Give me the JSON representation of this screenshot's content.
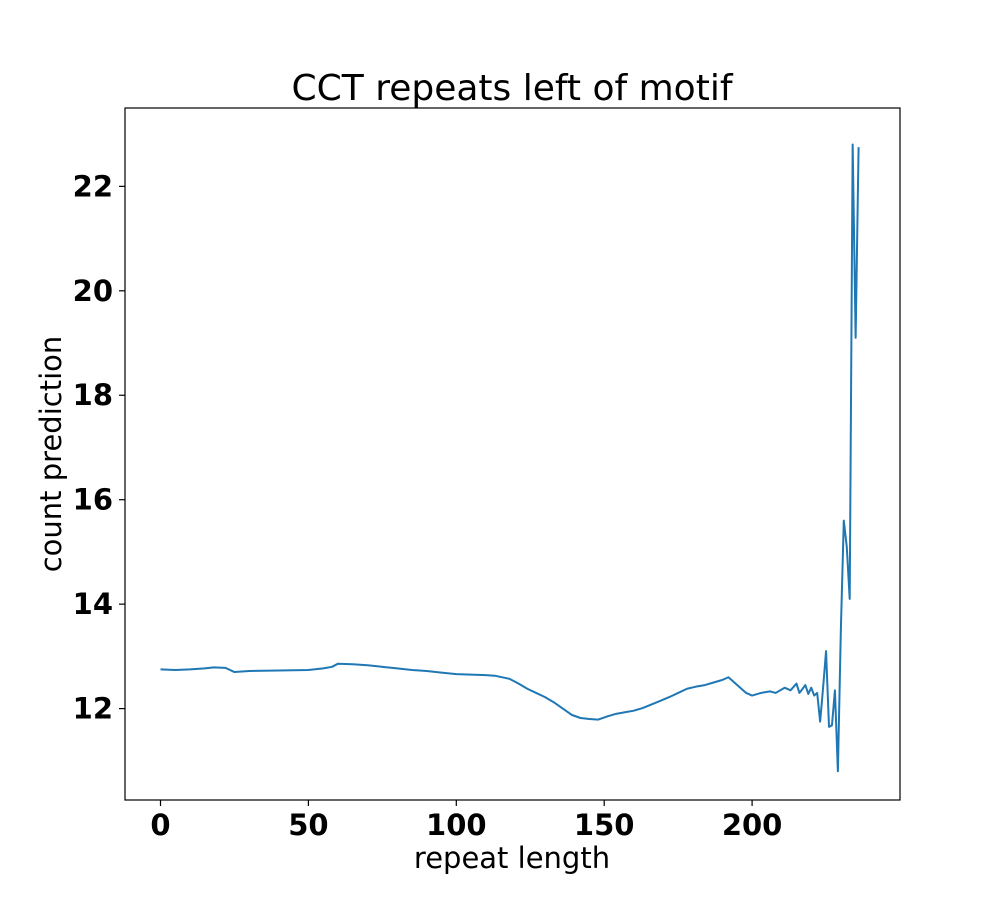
{
  "chart_data": {
    "type": "line",
    "title": "CCT repeats left of motif",
    "xlabel": "repeat length",
    "ylabel": "count prediction",
    "xlim": [
      -12,
      250
    ],
    "ylim": [
      10.25,
      23.5
    ],
    "xticks": [
      0,
      50,
      100,
      150,
      200
    ],
    "yticks": [
      12,
      14,
      16,
      18,
      20,
      22
    ],
    "grid": false,
    "legend": "none",
    "line_color": "#1f77b4",
    "series": [
      {
        "x": [
          0,
          5,
          10,
          15,
          18,
          22,
          25,
          30,
          40,
          50,
          55,
          58,
          60,
          65,
          70,
          75,
          80,
          85,
          90,
          95,
          100,
          105,
          110,
          113,
          118,
          121,
          124,
          127,
          130,
          133,
          136,
          139,
          142,
          145,
          148,
          151,
          154,
          157,
          160,
          163,
          166,
          169,
          172,
          175,
          178,
          181,
          184,
          187,
          190,
          192,
          195,
          198,
          200,
          203,
          206,
          208,
          211,
          213,
          215,
          216,
          218,
          219,
          220,
          221,
          222,
          223,
          224,
          225,
          226,
          227,
          228,
          229,
          230,
          231,
          232,
          233,
          234,
          235,
          236
        ],
        "y": [
          12.75,
          12.74,
          12.75,
          12.77,
          12.79,
          12.78,
          12.7,
          12.72,
          12.73,
          12.74,
          12.77,
          12.8,
          12.86,
          12.85,
          12.83,
          12.8,
          12.77,
          12.74,
          12.72,
          12.69,
          12.66,
          12.65,
          12.64,
          12.63,
          12.57,
          12.48,
          12.38,
          12.3,
          12.22,
          12.12,
          12.0,
          11.88,
          11.82,
          11.8,
          11.79,
          11.85,
          11.9,
          11.93,
          11.96,
          12.01,
          12.08,
          12.15,
          12.22,
          12.3,
          12.38,
          12.42,
          12.45,
          12.5,
          12.55,
          12.6,
          12.45,
          12.3,
          12.25,
          12.3,
          12.33,
          12.3,
          12.4,
          12.35,
          12.48,
          12.3,
          12.45,
          12.28,
          12.4,
          12.25,
          12.3,
          11.75,
          12.4,
          13.1,
          11.65,
          11.68,
          12.35,
          10.8,
          13.5,
          15.6,
          15.1,
          14.1,
          22.8,
          19.1,
          22.75
        ]
      }
    ]
  }
}
